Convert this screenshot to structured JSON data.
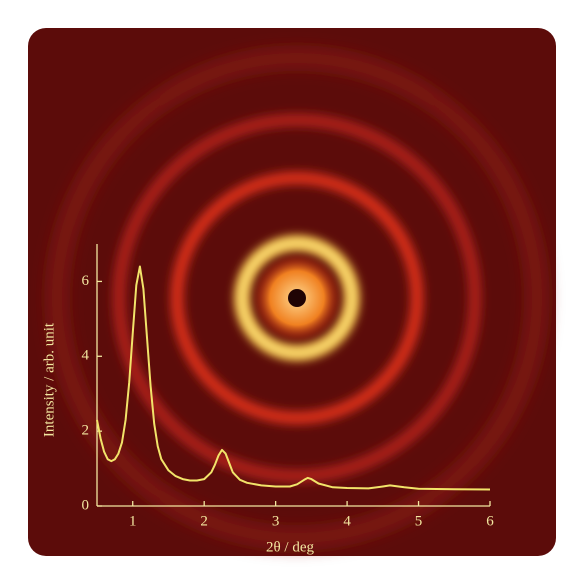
{
  "chart_data": {
    "type": "line",
    "x_label": "2θ / deg",
    "y_label": "Intensity / arb. unit",
    "x": [
      0.5,
      0.55,
      0.6,
      0.65,
      0.7,
      0.75,
      0.8,
      0.85,
      0.9,
      0.95,
      1.0,
      1.05,
      1.1,
      1.15,
      1.2,
      1.25,
      1.3,
      1.35,
      1.4,
      1.5,
      1.6,
      1.7,
      1.8,
      1.9,
      2.0,
      2.1,
      2.15,
      2.2,
      2.25,
      2.3,
      2.35,
      2.4,
      2.5,
      2.6,
      2.8,
      3.0,
      3.2,
      3.3,
      3.4,
      3.45,
      3.5,
      3.6,
      3.8,
      4.0,
      4.3,
      4.5,
      4.6,
      4.8,
      5.0,
      5.5,
      6.0
    ],
    "y": [
      2.3,
      1.8,
      1.45,
      1.25,
      1.2,
      1.25,
      1.4,
      1.7,
      2.3,
      3.3,
      4.6,
      5.9,
      6.4,
      5.8,
      4.5,
      3.2,
      2.2,
      1.6,
      1.25,
      0.95,
      0.8,
      0.72,
      0.68,
      0.68,
      0.72,
      0.9,
      1.1,
      1.35,
      1.5,
      1.4,
      1.15,
      0.9,
      0.7,
      0.62,
      0.55,
      0.52,
      0.52,
      0.58,
      0.7,
      0.75,
      0.72,
      0.6,
      0.5,
      0.48,
      0.47,
      0.52,
      0.55,
      0.5,
      0.46,
      0.45,
      0.44
    ],
    "color": "#f2e46a",
    "xlim": [
      0.5,
      6
    ],
    "ylim": [
      0,
      7
    ],
    "xticks": [
      1,
      2,
      3,
      4,
      5,
      6
    ],
    "yticks": [
      0,
      2,
      4,
      6
    ]
  }
}
